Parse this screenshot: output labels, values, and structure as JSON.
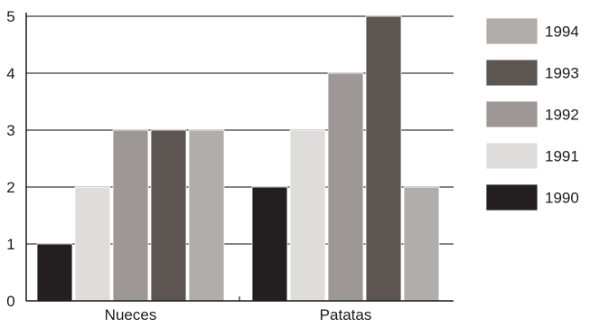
{
  "chart_data": {
    "type": "bar",
    "categories": [
      "Nueces",
      "Patatas"
    ],
    "series": [
      {
        "name": "1990",
        "color": "#231f20",
        "values": [
          1,
          2
        ]
      },
      {
        "name": "1991",
        "color": "#dedddc",
        "values": [
          2,
          3
        ]
      },
      {
        "name": "1992",
        "color": "#9d9896",
        "values": [
          3,
          4
        ]
      },
      {
        "name": "1993",
        "color": "#5d5552",
        "values": [
          3,
          5
        ]
      },
      {
        "name": "1994",
        "color": "#b1adaa",
        "values": [
          3,
          2
        ]
      }
    ],
    "ylim": [
      0,
      5
    ],
    "yticks": [
      0,
      1,
      2,
      3,
      4,
      5
    ],
    "grid": true,
    "legend_position": "right",
    "legend_order": [
      "1994",
      "1993",
      "1992",
      "1991",
      "1990"
    ]
  }
}
